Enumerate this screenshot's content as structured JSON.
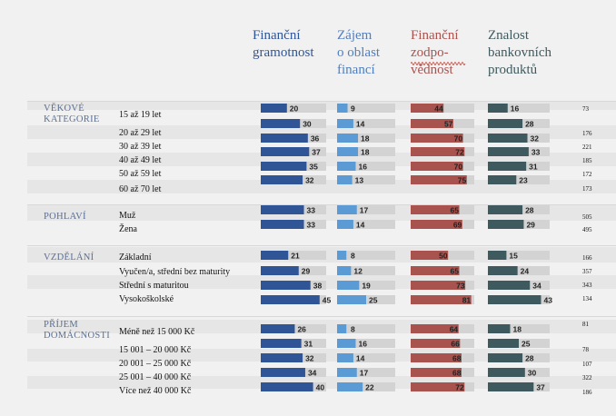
{
  "columns": [
    {
      "title": "Finanční\ngramotnost",
      "color": "#2f5597",
      "max": 50
    },
    {
      "title": "Zájem\no oblast\nfinancí",
      "color": "#5b9bd5",
      "max": 50
    },
    {
      "title": "Finanční\nzodpo-\nvědnost",
      "color": "#a9534f",
      "max": 85
    },
    {
      "title": "Znalost\nbankovních\nproduktů",
      "color": "#3f5a5e",
      "max": 50
    }
  ],
  "header_colors": [
    "#2f5597",
    "#4f7fc0",
    "#a9534f",
    "#3f5a5e"
  ],
  "groups": [
    {
      "label": "VĚKOVÉ\nKATEGORIE",
      "rows": [
        {
          "label": "15 až 19 let",
          "n": "73"
        },
        {
          "label": "",
          "n": ""
        },
        {
          "label": "20 až 29 let",
          "n": "176"
        },
        {
          "label": "30 až 39 let",
          "n": "221"
        },
        {
          "label": "40 až 49 let",
          "n": "185"
        },
        {
          "label": "50 až 59 let",
          "n": "172"
        },
        {
          "label": "60 až 70 let",
          "n": "173"
        }
      ]
    },
    {
      "label": "POHLAVÍ",
      "rows": [
        {
          "label": "Muž",
          "n": "505"
        },
        {
          "label": "Žena",
          "n": "495"
        }
      ]
    },
    {
      "label": "VZDĚLÁNÍ",
      "rows": [
        {
          "label": "Základní",
          "n": "166"
        },
        {
          "label": "Vyučen/a, střední bez maturity",
          "n": "357"
        },
        {
          "label": "Střední s maturitou",
          "n": "343"
        },
        {
          "label": "Vysokoškolské",
          "n": "134"
        }
      ]
    },
    {
      "label": "PŘÍJEM\nDOMÁCNOSTI",
      "rows": [
        {
          "label": "Méně než 15 000 Kč",
          "n": "81"
        },
        {
          "label": "15 001 – 20 000 Kč",
          "n": "78"
        },
        {
          "label": "20 001 – 25 000 Kč",
          "n": "107"
        },
        {
          "label": "25 001 – 40 000 Kč",
          "n": "322"
        },
        {
          "label": "Více než 40 000 Kč",
          "n": "186"
        }
      ]
    }
  ],
  "chart_data": {
    "type": "bar",
    "orientation": "horizontal",
    "title": "",
    "series": [
      {
        "name": "Finanční gramotnost",
        "values": [
          20,
          30,
          36,
          37,
          35,
          32,
          33,
          33,
          21,
          29,
          38,
          45,
          26,
          31,
          32,
          34,
          40
        ]
      },
      {
        "name": "Zájem o oblast financí",
        "values": [
          9,
          14,
          18,
          18,
          16,
          13,
          17,
          14,
          8,
          12,
          19,
          25,
          8,
          16,
          14,
          17,
          22
        ]
      },
      {
        "name": "Finanční zodpovědnost",
        "values": [
          44,
          57,
          70,
          72,
          70,
          75,
          65,
          69,
          50,
          65,
          73,
          81,
          64,
          66,
          68,
          68,
          72
        ]
      },
      {
        "name": "Znalost bankovních produktů",
        "values": [
          16,
          28,
          32,
          33,
          31,
          23,
          28,
          29,
          15,
          24,
          34,
          43,
          18,
          25,
          28,
          30,
          37
        ]
      }
    ]
  }
}
